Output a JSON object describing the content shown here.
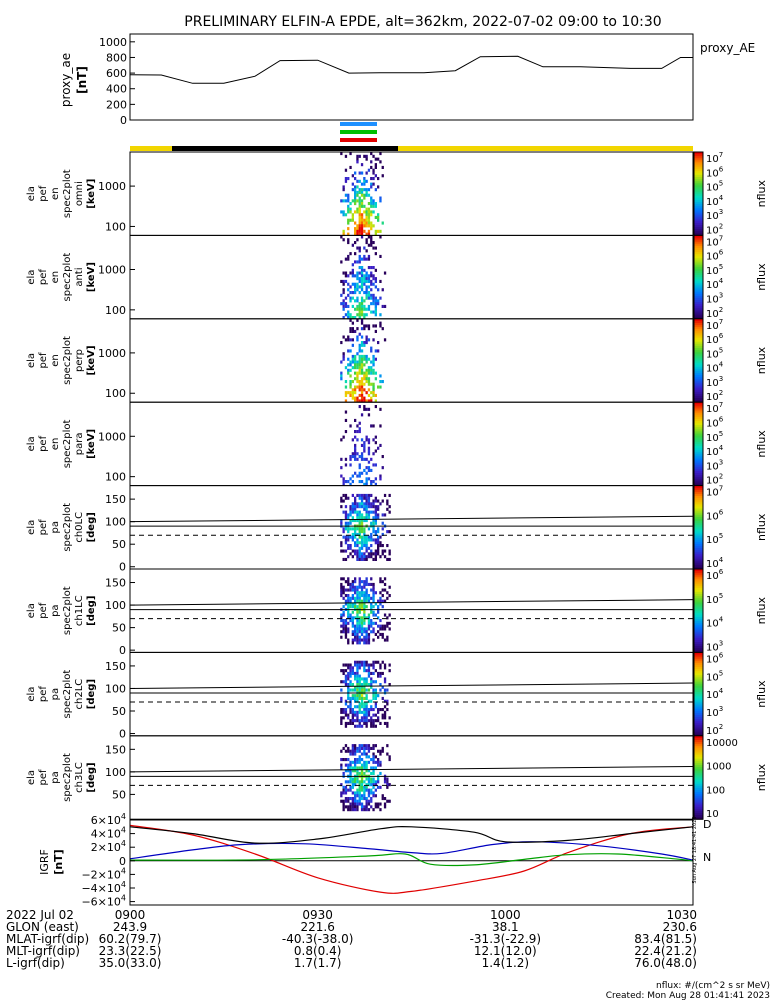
{
  "title": "PRELIMINARY ELFIN-A EPDE, alt=362km, 2022-07-02 09:00 to 10:30",
  "chart_data": {
    "type": "line",
    "x_range": [
      "09:00",
      "10:30"
    ],
    "ae": {
      "ylabel": "proxy_ae",
      "yunit": "[nT]",
      "legend": "proxy_AE",
      "ylim": [
        0,
        1100
      ],
      "ticks": [
        "0",
        "200",
        "400",
        "600",
        "800",
        "1000"
      ],
      "tick_values": [
        0,
        200,
        400,
        600,
        800,
        1000
      ],
      "points": [
        [
          0,
          580
        ],
        [
          5,
          575
        ],
        [
          10,
          470
        ],
        [
          15,
          470
        ],
        [
          20,
          560
        ],
        [
          24,
          760
        ],
        [
          30,
          765
        ],
        [
          35,
          600
        ],
        [
          40,
          605
        ],
        [
          47,
          605
        ],
        [
          52,
          630
        ],
        [
          56,
          810
        ],
        [
          62,
          815
        ],
        [
          66,
          680
        ],
        [
          72,
          680
        ],
        [
          80,
          660
        ],
        [
          85,
          660
        ],
        [
          88,
          800
        ],
        [
          90,
          800
        ]
      ]
    },
    "colorbars": [
      {
        "label": "nflux",
        "ticks": [
          "10^7",
          "10^6",
          "10^5",
          "10^4",
          "10^3",
          "10^2"
        ]
      },
      {
        "label": "nflux",
        "ticks": [
          "10^7",
          "10^6",
          "10^5",
          "10^4",
          "10^3",
          "10^2"
        ]
      },
      {
        "label": "nflux",
        "ticks": [
          "10^7",
          "10^6",
          "10^5",
          "10^4",
          "10^3",
          "10^2"
        ]
      },
      {
        "label": "nflux",
        "ticks": [
          "10^7",
          "10^6",
          "10^5",
          "10^4",
          "10^3",
          "10^2"
        ]
      },
      {
        "label": "nflux",
        "ticks": [
          "10^7",
          "10^6",
          "10^5",
          "10^4"
        ]
      },
      {
        "label": "nflux",
        "ticks": [
          "10^6",
          "10^5",
          "10^4",
          "10^3"
        ]
      },
      {
        "label": "nflux",
        "ticks": [
          "10^6",
          "10^5",
          "10^4",
          "10^3",
          "10^2"
        ]
      },
      {
        "label": "nflux",
        "ticks": [
          "10000",
          "1000",
          "100",
          "10"
        ]
      }
    ],
    "spec_panels": [
      {
        "lines": [
          "ela",
          "pef",
          "en",
          "spec2plot",
          "omni"
        ],
        "unit": "[keV]",
        "ticks": [
          "1000",
          "100"
        ],
        "tick_values": [
          1000,
          100
        ]
      },
      {
        "lines": [
          "ela",
          "pef",
          "en",
          "spec2plot",
          "anti"
        ],
        "unit": "[keV]",
        "ticks": [
          "1000",
          "100"
        ],
        "tick_values": [
          1000,
          100
        ]
      },
      {
        "lines": [
          "ela",
          "pef",
          "en",
          "spec2plot",
          "perp"
        ],
        "unit": "[keV]",
        "ticks": [
          "1000",
          "100"
        ],
        "tick_values": [
          1000,
          100
        ]
      },
      {
        "lines": [
          "ela",
          "pef",
          "en",
          "spec2plot",
          "para"
        ],
        "unit": "[keV]",
        "ticks": [
          "1000",
          "100"
        ],
        "tick_values": [
          1000,
          100
        ]
      }
    ],
    "pa_panels": [
      {
        "lines": [
          "ela",
          "pef",
          "pa",
          "spec2plot",
          "ch0LC"
        ],
        "unit": "[deg]",
        "ticks": [
          "150",
          "100",
          "50",
          "0"
        ],
        "tick_values": [
          150,
          100,
          50,
          0
        ]
      },
      {
        "lines": [
          "ela",
          "pef",
          "pa",
          "spec2plot",
          "ch1LC"
        ],
        "unit": "[deg]",
        "ticks": [
          "150",
          "100",
          "50",
          "0"
        ],
        "tick_values": [
          150,
          100,
          50,
          0
        ]
      },
      {
        "lines": [
          "ela",
          "pef",
          "pa",
          "spec2plot",
          "ch2LC"
        ],
        "unit": "[deg]",
        "ticks": [
          "150",
          "100",
          "50",
          "0"
        ],
        "tick_values": [
          150,
          100,
          50,
          0
        ]
      },
      {
        "lines": [
          "ela",
          "pef",
          "pa",
          "spec2plot",
          "ch3LC"
        ],
        "unit": "[deg]",
        "ticks": [
          "150",
          "100",
          "50"
        ],
        "tick_values": [
          150,
          100,
          50
        ]
      }
    ],
    "igrf": {
      "ylabel": "IGRF",
      "yunit": "[nT]",
      "ylim": [
        -65000,
        60000
      ],
      "ticks": [
        "6×10^4",
        "4×10^4",
        "2×10^4",
        "0",
        "−2×10^4",
        "−4×10^4",
        "−6×10^4"
      ],
      "tick_values": [
        60000,
        40000,
        20000,
        0,
        -20000,
        -40000,
        -60000
      ],
      "series": [
        {
          "name": "D",
          "color": "#e00000",
          "points": [
            [
              0,
              52000
            ],
            [
              10,
              38000
            ],
            [
              20,
              10000
            ],
            [
              30,
              -25000
            ],
            [
              40,
              -46000
            ],
            [
              45,
              -45000
            ],
            [
              55,
              -30000
            ],
            [
              63,
              -15000
            ],
            [
              70,
              12000
            ],
            [
              80,
              40000
            ],
            [
              90,
              50000
            ]
          ]
        },
        {
          "name": "N",
          "color": "#00a000",
          "points": [
            [
              0,
              1000
            ],
            [
              20,
              1500
            ],
            [
              38,
              7000
            ],
            [
              44,
              10000
            ],
            [
              48,
              -5000
            ],
            [
              55,
              -6000
            ],
            [
              63,
              2000
            ],
            [
              70,
              9000
            ],
            [
              78,
              10000
            ],
            [
              87,
              3000
            ],
            [
              90,
              0
            ]
          ]
        },
        {
          "name": "",
          "color": "#0000c0",
          "points": [
            [
              0,
              3000
            ],
            [
              10,
              16000
            ],
            [
              18,
              24000
            ],
            [
              28,
              25000
            ],
            [
              38,
              18000
            ],
            [
              45,
              12000
            ],
            [
              50,
              11000
            ],
            [
              58,
              24000
            ],
            [
              65,
              28000
            ],
            [
              75,
              22000
            ],
            [
              85,
              10000
            ],
            [
              90,
              1000
            ]
          ]
        },
        {
          "name": "",
          "color": "#000000",
          "points": [
            [
              0,
              50000
            ],
            [
              10,
              40000
            ],
            [
              20,
              26000
            ],
            [
              30,
              32000
            ],
            [
              40,
              47000
            ],
            [
              45,
              50000
            ],
            [
              55,
              42000
            ],
            [
              60,
              28000
            ],
            [
              70,
              30000
            ],
            [
              80,
              40000
            ],
            [
              90,
              50000
            ]
          ]
        }
      ]
    }
  },
  "footer": {
    "rows": [
      {
        "label": "2022 Jul 02",
        "values": [
          "0900",
          "0930",
          "1000",
          "1030"
        ]
      },
      {
        "label": "GLON (east)",
        "values": [
          "243.9",
          "221.6",
          "38.1",
          "230.6"
        ]
      },
      {
        "label": "MLAT-igrf(dip)",
        "values": [
          "60.2(79.7)",
          "-40.3(-38.0)",
          "-31.3(-22.9)",
          "83.4(81.5)"
        ]
      },
      {
        "label": "MLT-igrf(dip)",
        "values": [
          "23.3(22.5)",
          "0.8(0.4)",
          "12.1(12.0)",
          "22.4(21.2)"
        ]
      },
      {
        "label": "L-igrf(dip)",
        "values": [
          "35.0(33.0)",
          "1.7(1.7)",
          "1.4(1.2)",
          "76.0(48.0)"
        ]
      }
    ],
    "nflux_note": "nflux: #/(cm^2 s sr MeV)",
    "created": "Created: Mon Aug 28 01:41:41 2023",
    "side_note": "Sun Aug 27 18:41:41 2023"
  },
  "colors": {
    "orbit_sunlit": "#f2d600",
    "orbit_shadow": "#000000",
    "bar_blue": "#1e90ff",
    "bar_green": "#00c000",
    "bar_red": "#e00000"
  }
}
